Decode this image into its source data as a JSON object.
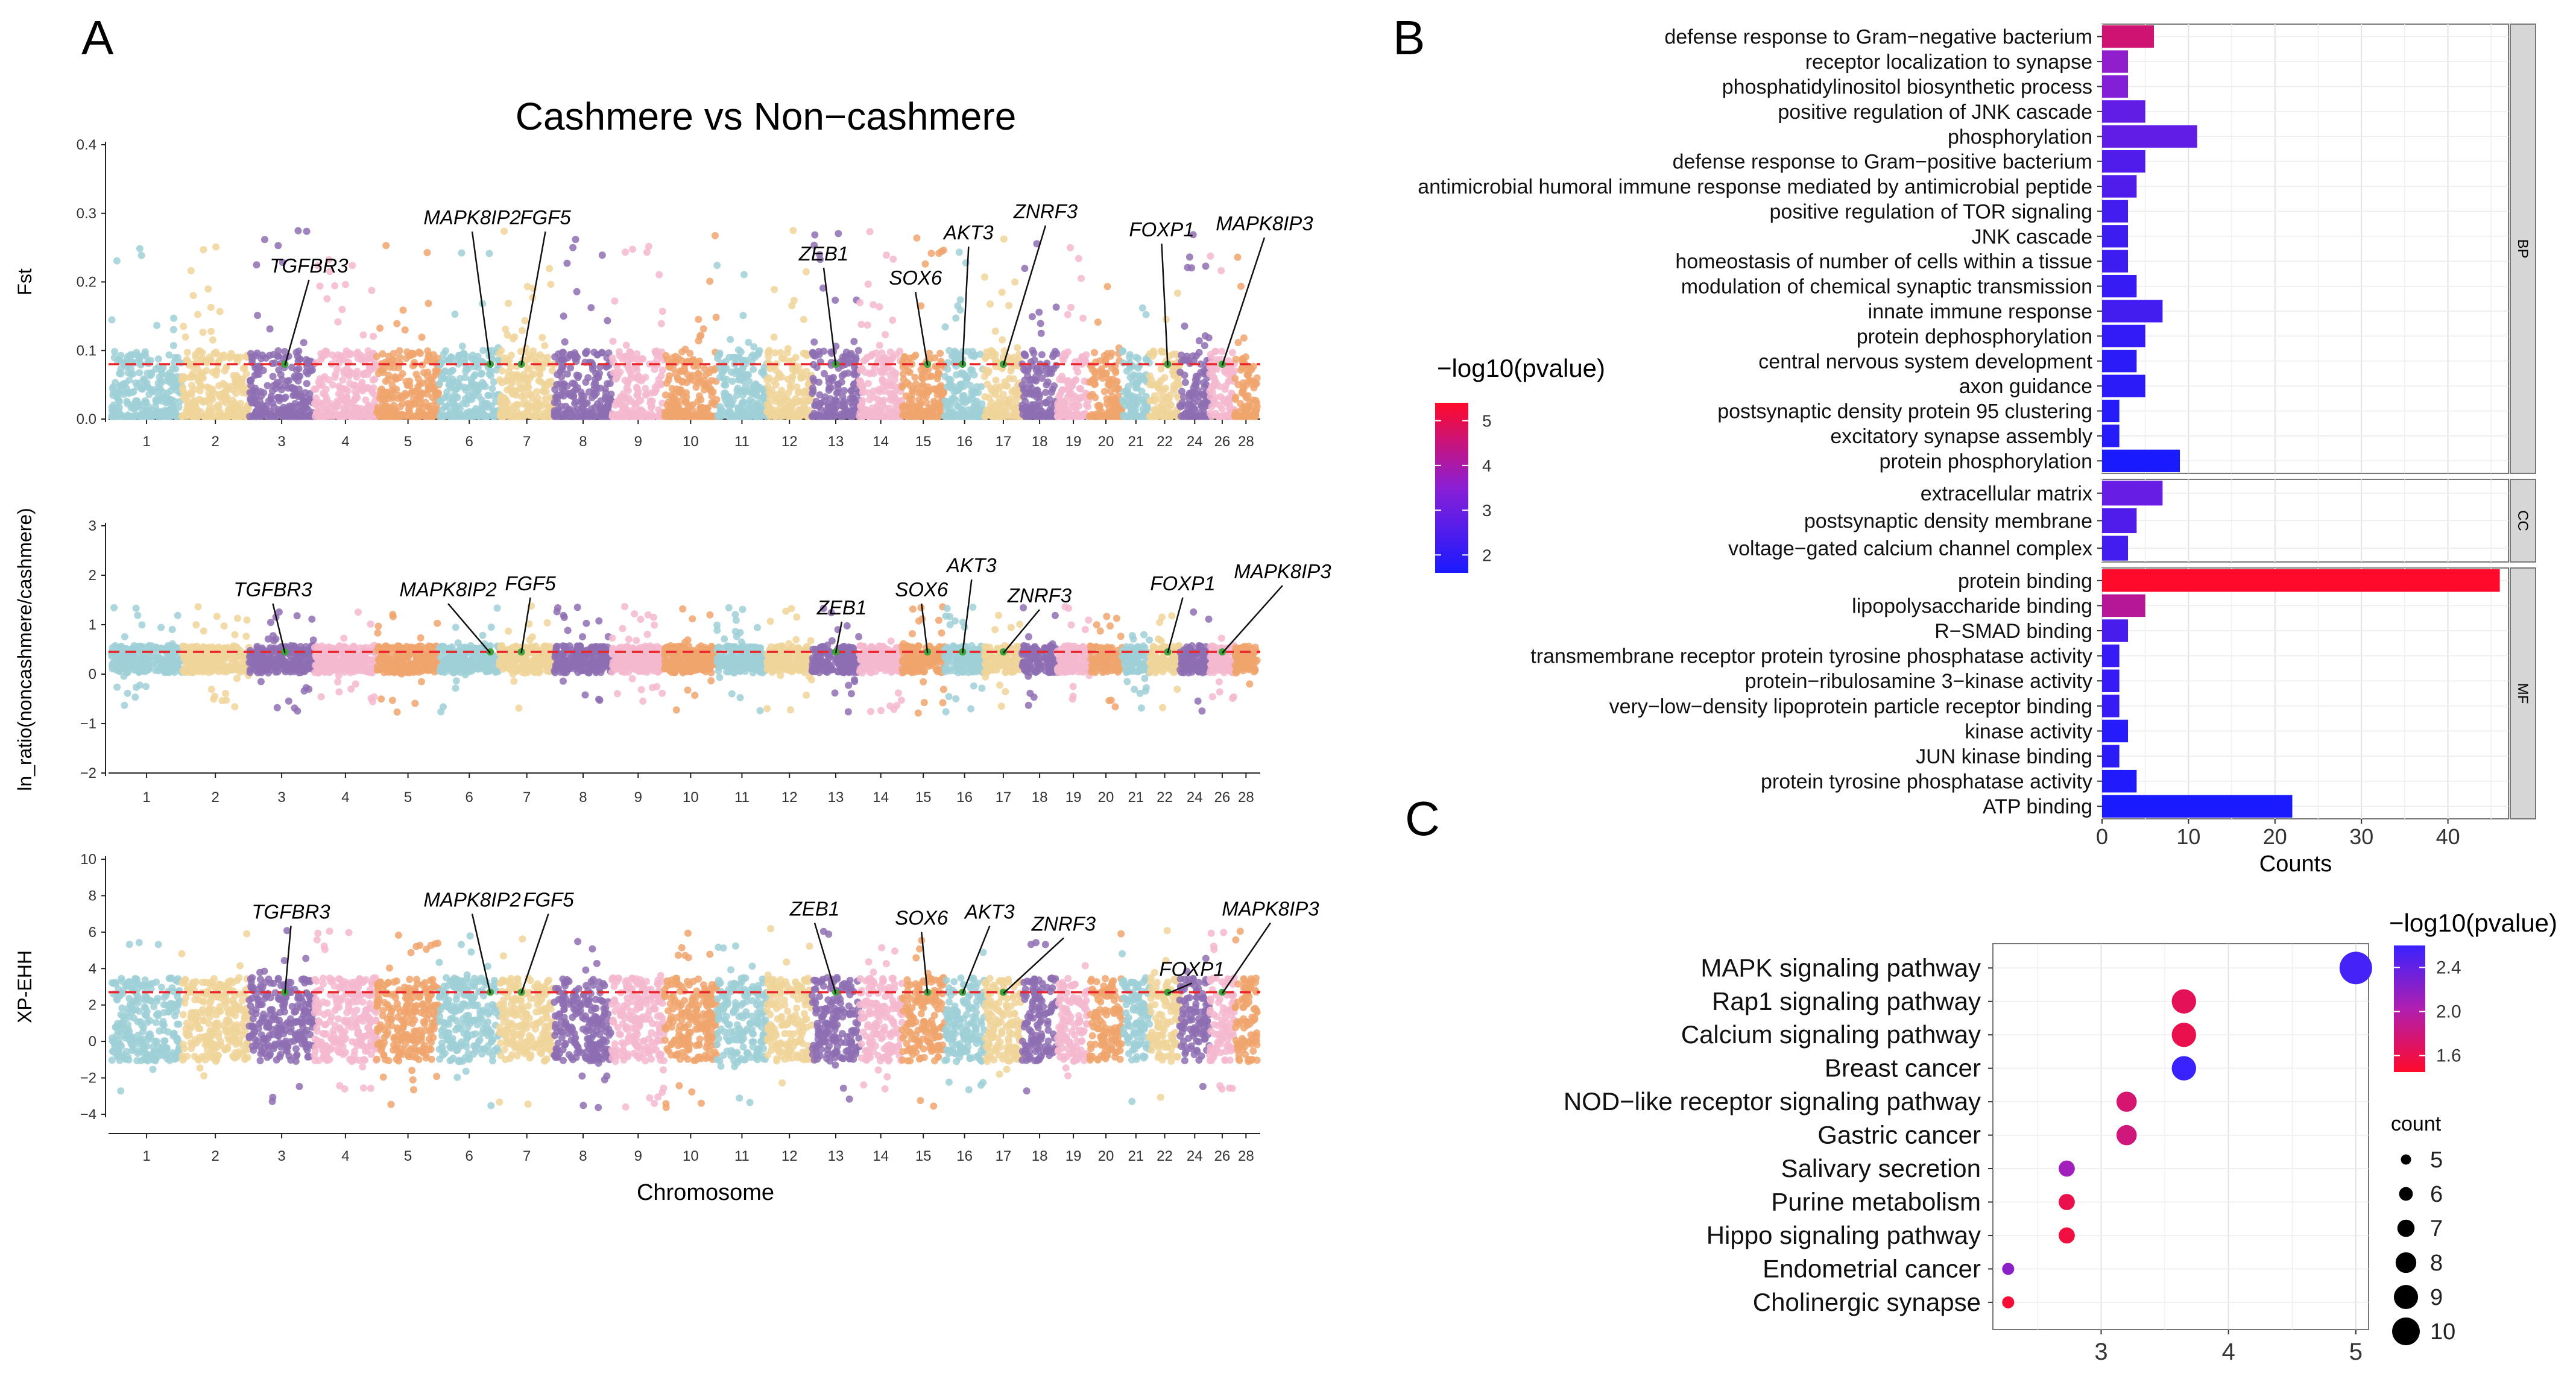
{
  "chart_data": [
    {
      "panel": "A",
      "type": "scatter",
      "subtype": "manhattan",
      "title": "Cashmere vs Non−cashmere",
      "xlabel": "Chromosome",
      "chromosomes": [
        "1",
        "2",
        "3",
        "4",
        "5",
        "6",
        "7",
        "8",
        "9",
        "10",
        "11",
        "12",
        "13",
        "14",
        "15",
        "16",
        "17",
        "18",
        "19",
        "20",
        "21",
        "22",
        "24",
        "26",
        "28"
      ],
      "chromosome_colors": [
        "#9fd0d7",
        "#f0d59a",
        "#8e6fb3",
        "#f4b9cf",
        "#f0a46d"
      ],
      "threshold_color": "#e8262b",
      "highlight_color": "#3da33a",
      "genes": [
        "TGFBR3",
        "MAPK8IP2",
        "FGF5",
        "ZEB1",
        "SOX6",
        "AKT3",
        "ZNRF3",
        "FOXP1",
        "MAPK8IP3"
      ],
      "tracks": [
        {
          "ylabel": "Fst",
          "ylim": [
            0,
            0.4
          ],
          "yticks": [
            "0.0",
            "0.1",
            "0.2",
            "0.3",
            "0.4"
          ],
          "threshold": 0.08
        },
        {
          "ylabel": "ln_ratio(noncashmere/cashmere)",
          "ylim": [
            -2,
            3
          ],
          "yticks": [
            "−2",
            "−1",
            "0",
            "1",
            "2",
            "3"
          ],
          "threshold": 0.45
        },
        {
          "ylabel": "XP-EHH",
          "ylim": [
            -4,
            10
          ],
          "yticks": [
            "−4",
            "−2",
            "0",
            "2",
            "4",
            "6",
            "8",
            "10"
          ],
          "threshold": 2.7
        }
      ]
    },
    {
      "panel": "B",
      "type": "bar",
      "orientation": "horizontal",
      "xlabel": "Counts",
      "xlim": [
        0,
        47
      ],
      "xticks": [
        "0",
        "10",
        "20",
        "30",
        "40"
      ],
      "legend_title": "−log10(pvalue)",
      "legend_ticks": [
        "5",
        "4",
        "3",
        "2"
      ],
      "color_range": [
        1.6,
        5.4
      ],
      "groups": [
        {
          "name": "BP",
          "terms": [
            {
              "term": "defense response to Gram−negative bacterium",
              "count": 6,
              "logp": 4.6
            },
            {
              "term": "receptor localization to synapse",
              "count": 3,
              "logp": 3.6
            },
            {
              "term": "phosphatidylinositol biosynthetic process",
              "count": 3,
              "logp": 3.4
            },
            {
              "term": "positive regulation of JNK cascade",
              "count": 5,
              "logp": 2.8
            },
            {
              "term": "phosphorylation",
              "count": 11,
              "logp": 2.8
            },
            {
              "term": "defense response to Gram−positive bacterium",
              "count": 5,
              "logp": 2.5
            },
            {
              "term": "antimicrobial humoral immune response mediated by antimicrobial peptide",
              "count": 4,
              "logp": 2.5
            },
            {
              "term": "positive regulation of TOR signaling",
              "count": 3,
              "logp": 2.3
            },
            {
              "term": "JNK cascade",
              "count": 3,
              "logp": 2.2
            },
            {
              "term": "homeostasis of number of cells within a tissue",
              "count": 3,
              "logp": 2.2
            },
            {
              "term": "modulation of chemical synaptic transmission",
              "count": 4,
              "logp": 2.1
            },
            {
              "term": "innate immune response",
              "count": 7,
              "logp": 2.3
            },
            {
              "term": "protein dephosphorylation",
              "count": 5,
              "logp": 2.0
            },
            {
              "term": "central nervous system development",
              "count": 4,
              "logp": 1.9
            },
            {
              "term": "axon guidance",
              "count": 5,
              "logp": 1.9
            },
            {
              "term": "postsynaptic density protein 95 clustering",
              "count": 2,
              "logp": 1.8
            },
            {
              "term": "excitatory synapse assembly",
              "count": 2,
              "logp": 1.8
            },
            {
              "term": "protein phosphorylation",
              "count": 9,
              "logp": 1.6
            }
          ]
        },
        {
          "name": "CC",
          "terms": [
            {
              "term": "extracellular matrix",
              "count": 7,
              "logp": 2.9
            },
            {
              "term": "postsynaptic density membrane",
              "count": 4,
              "logp": 2.5
            },
            {
              "term": "voltage−gated calcium channel complex",
              "count": 3,
              "logp": 2.3
            }
          ]
        },
        {
          "name": "MF",
          "terms": [
            {
              "term": "protein binding",
              "count": 46,
              "logp": 5.4
            },
            {
              "term": "lipopolysaccharide binding",
              "count": 5,
              "logp": 4.2
            },
            {
              "term": "R−SMAD binding",
              "count": 3,
              "logp": 2.4
            },
            {
              "term": "transmembrane receptor protein tyrosine phosphatase activity",
              "count": 2,
              "logp": 2.1
            },
            {
              "term": "protein−ribulosamine 3−kinase activity",
              "count": 2,
              "logp": 2.1
            },
            {
              "term": "very−low−density lipoprotein particle receptor binding",
              "count": 2,
              "logp": 2.1
            },
            {
              "term": "kinase activity",
              "count": 3,
              "logp": 1.8
            },
            {
              "term": "JUN kinase binding",
              "count": 2,
              "logp": 1.9
            },
            {
              "term": "protein tyrosine phosphatase activity",
              "count": 4,
              "logp": 1.7
            },
            {
              "term": "ATP binding",
              "count": 22,
              "logp": 1.6
            }
          ]
        }
      ]
    },
    {
      "panel": "C",
      "type": "scatter",
      "subtype": "dot",
      "xlim": [
        2.15,
        5.1
      ],
      "xticks": [
        "3",
        "4",
        "5"
      ],
      "legend_title": "−log10(pvalue)",
      "legend_ticks": [
        "2.4",
        "2.0",
        "1.6"
      ],
      "color_range": [
        1.45,
        2.6
      ],
      "size_legend_title": "count",
      "size_legend": [
        "5",
        "6",
        "7",
        "8",
        "9",
        "10"
      ],
      "pathways": [
        {
          "name": "MAPK signaling pathway",
          "x": 5.0,
          "count": 10,
          "logp": 2.55
        },
        {
          "name": "Rap1 signaling pathway",
          "x": 3.65,
          "count": 8,
          "logp": 1.65
        },
        {
          "name": "Calcium signaling pathway",
          "x": 3.65,
          "count": 8,
          "logp": 1.6
        },
        {
          "name": "Breast cancer",
          "x": 3.65,
          "count": 8,
          "logp": 2.6
        },
        {
          "name": "NOD−like receptor signaling pathway",
          "x": 3.2,
          "count": 7,
          "logp": 1.75
        },
        {
          "name": "Gastric cancer",
          "x": 3.2,
          "count": 7,
          "logp": 1.8
        },
        {
          "name": "Salivary secretion",
          "x": 2.73,
          "count": 6,
          "logp": 2.1
        },
        {
          "name": "Purine metabolism",
          "x": 2.73,
          "count": 6,
          "logp": 1.6
        },
        {
          "name": "Hippo signaling pathway",
          "x": 2.73,
          "count": 6,
          "logp": 1.55
        },
        {
          "name": "Endometrial cancer",
          "x": 2.27,
          "count": 5,
          "logp": 2.2
        },
        {
          "name": "Cholinergic synapse",
          "x": 2.27,
          "count": 5,
          "logp": 1.5
        }
      ]
    }
  ]
}
